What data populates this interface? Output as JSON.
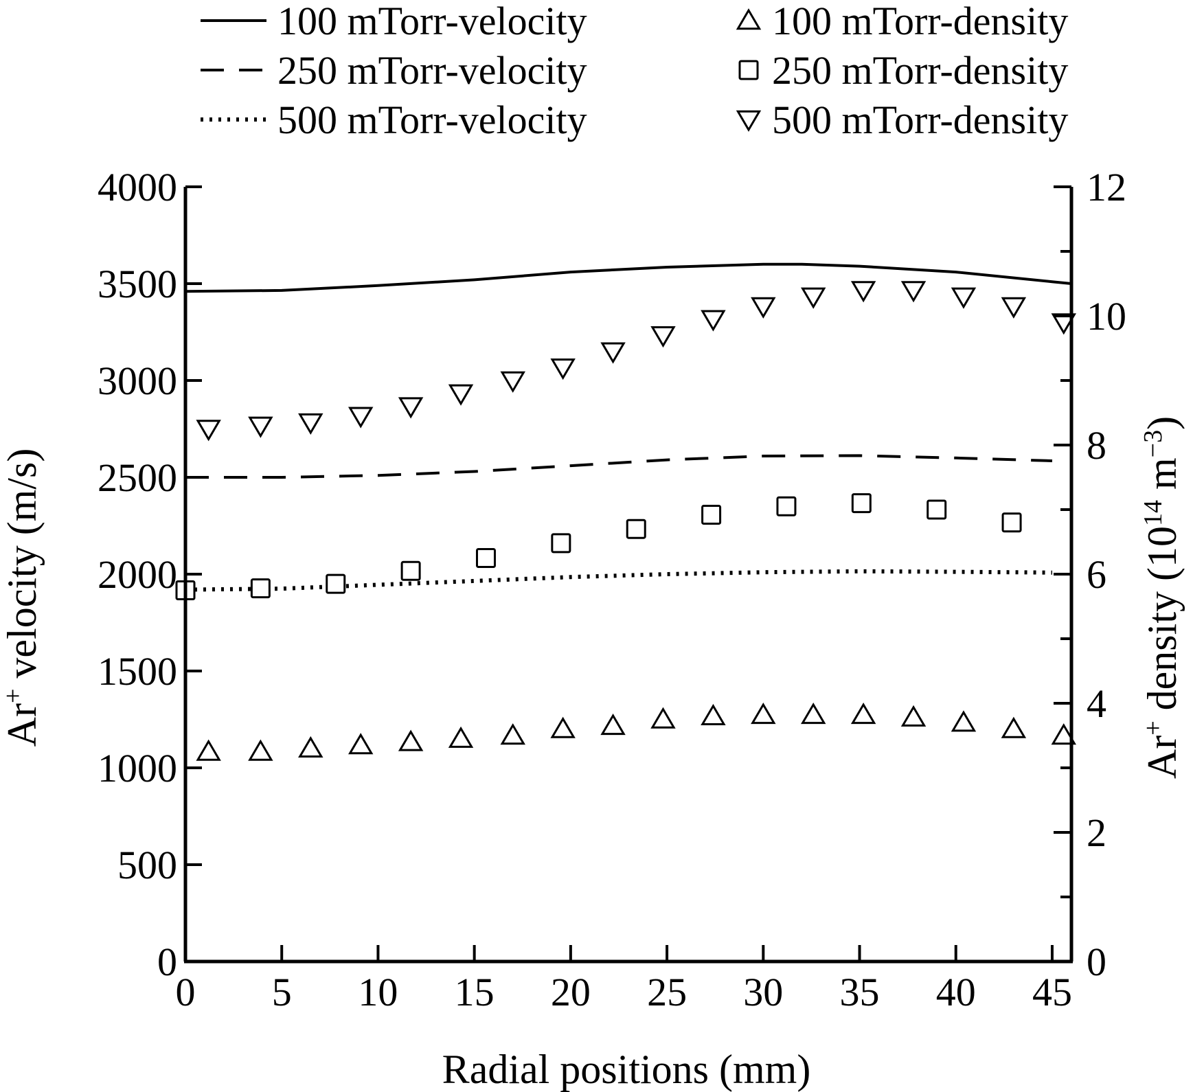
{
  "chart_data": {
    "type": "line",
    "xlabel": "Radial positions (mm)",
    "ylabel_left": {
      "main": "Ar",
      "sup": "+",
      "rest": " velocity (m/s)"
    },
    "ylabel_right": {
      "main": "Ar",
      "sup": "+",
      "mid": " density (10",
      "sup2": "14",
      "mid2": " m",
      "sup3": "−3",
      "end": ")"
    },
    "xlim": [
      0,
      46
    ],
    "ylim_left": [
      0,
      4000
    ],
    "ylim_right": [
      0,
      12
    ],
    "xticks": [
      "0",
      "5",
      "10",
      "15",
      "20",
      "25",
      "30",
      "35",
      "40",
      "45"
    ],
    "yticks_left": [
      "0",
      "500",
      "1000",
      "1500",
      "2000",
      "2500",
      "3000",
      "3500",
      "4000"
    ],
    "yticks_right": [
      "0",
      "2",
      "4",
      "6",
      "8",
      "10",
      "12"
    ],
    "grid": false,
    "legend_position": "top",
    "series": [
      {
        "name": "100 mTorr-velocity",
        "axis": "left",
        "style": "solid",
        "x": [
          0,
          5,
          10,
          15,
          20,
          25,
          30,
          32,
          35,
          40,
          45,
          46
        ],
        "y": [
          3460,
          3465,
          3490,
          3520,
          3560,
          3585,
          3600,
          3600,
          3590,
          3560,
          3510,
          3500
        ]
      },
      {
        "name": "250 mTorr-velocity",
        "axis": "left",
        "style": "dashed",
        "x": [
          0,
          5,
          10,
          15,
          20,
          25,
          30,
          35,
          40,
          45
        ],
        "y": [
          2500,
          2500,
          2510,
          2530,
          2560,
          2590,
          2610,
          2612,
          2600,
          2585
        ]
      },
      {
        "name": "500 mTorr-velocity",
        "axis": "left",
        "style": "dotted",
        "x": [
          0,
          5,
          10,
          15,
          20,
          25,
          30,
          35,
          40,
          45
        ],
        "y": [
          1920,
          1925,
          1945,
          1965,
          1985,
          2000,
          2010,
          2015,
          2012,
          2008
        ]
      },
      {
        "name": "100 mTorr-density",
        "axis": "right",
        "marker": "triangle-up",
        "x": [
          1.2,
          3.9,
          6.5,
          9.1,
          11.7,
          14.3,
          17.0,
          19.6,
          22.2,
          24.8,
          27.4,
          30.0,
          32.6,
          35.2,
          37.8,
          40.4,
          43.0,
          45.6
        ],
        "y": [
          3.25,
          3.25,
          3.3,
          3.35,
          3.4,
          3.45,
          3.5,
          3.6,
          3.65,
          3.75,
          3.8,
          3.82,
          3.82,
          3.82,
          3.78,
          3.7,
          3.6,
          3.5
        ]
      },
      {
        "name": "250 mTorr-density",
        "axis": "right",
        "marker": "square",
        "x": [
          0,
          3.9,
          7.8,
          11.7,
          15.6,
          19.5,
          23.4,
          27.3,
          31.2,
          35.1,
          39.0,
          42.9
        ],
        "y": [
          5.75,
          5.78,
          5.85,
          6.05,
          6.25,
          6.48,
          6.7,
          6.92,
          7.05,
          7.1,
          7.0,
          6.8
        ]
      },
      {
        "name": "500 mTorr-density",
        "axis": "right",
        "marker": "triangle-down",
        "x": [
          1.2,
          3.9,
          6.5,
          9.1,
          11.7,
          14.3,
          17.0,
          19.6,
          22.2,
          24.8,
          27.4,
          30.0,
          32.6,
          35.2,
          37.8,
          40.4,
          43.0,
          45.6
        ],
        "y": [
          8.25,
          8.3,
          8.35,
          8.45,
          8.6,
          8.8,
          9.0,
          9.2,
          9.45,
          9.7,
          9.95,
          10.15,
          10.3,
          10.4,
          10.4,
          10.3,
          10.15,
          9.9
        ]
      }
    ]
  }
}
